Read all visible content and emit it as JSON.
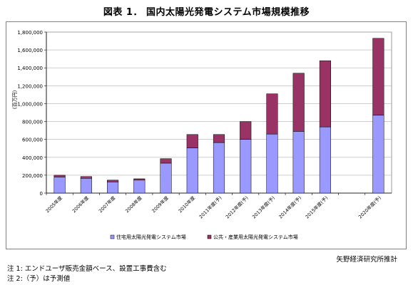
{
  "title": "図表 1．  国内太陽光発電システム市場規模推移",
  "credit": "矢野経済研究所推計",
  "notes": [
    "注 1:  エンドユーザ販売金額ベース、設置工事費含む",
    "注 2:（予）は予測値"
  ],
  "colors": {
    "residential": "#9999ff",
    "industrial": "#993366",
    "grid": "#b0b0b0",
    "plot_bg": "#ffffff"
  },
  "chart_data": {
    "type": "bar",
    "stacked": true,
    "ylabel": "(百万円)",
    "ylim": [
      0,
      1800000
    ],
    "yticks": [
      0,
      200000,
      400000,
      600000,
      800000,
      1000000,
      1200000,
      1400000,
      1600000,
      1800000
    ],
    "ytick_labels": [
      "0",
      "200,000",
      "400,000",
      "600,000",
      "800,000",
      "1,000,000",
      "1,200,000",
      "1,400,000",
      "1,600,000",
      "1,800,000"
    ],
    "grid": true,
    "legend_position": "bottom",
    "categories": [
      "2005年度",
      "2006年度",
      "2007年度",
      "2008年度",
      "2009年度",
      "2010年度",
      "2011年度(予)",
      "2012年度(予)",
      "2013年度(予)",
      "2014年度(予)",
      "2015年度(予)",
      "",
      "2020年度(予)"
    ],
    "series": [
      {
        "name": "住宅用太陽光発電システム市場",
        "values": [
          180000,
          165000,
          125000,
          145000,
          335000,
          505000,
          565000,
          600000,
          660000,
          690000,
          740000,
          null,
          870000
        ]
      },
      {
        "name": "公共・産業用太陽光発電システム市場",
        "values": [
          20000,
          20000,
          20000,
          15000,
          50000,
          150000,
          90000,
          200000,
          450000,
          650000,
          740000,
          null,
          860000
        ]
      }
    ]
  }
}
